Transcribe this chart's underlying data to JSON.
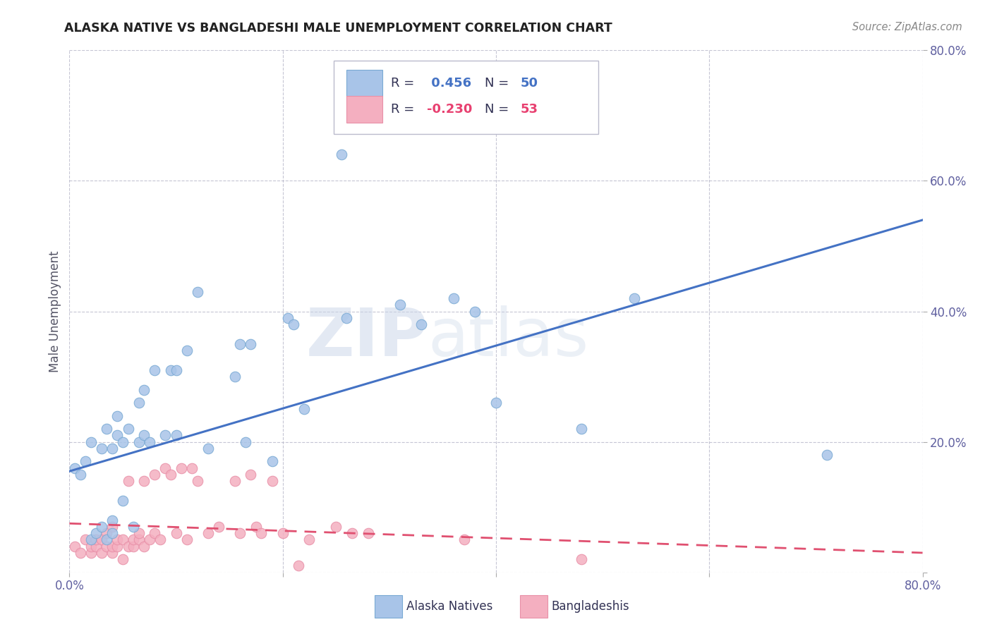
{
  "title": "ALASKA NATIVE VS BANGLADESHI MALE UNEMPLOYMENT CORRELATION CHART",
  "source": "Source: ZipAtlas.com",
  "ylabel": "Male Unemployment",
  "xlim": [
    0.0,
    0.8
  ],
  "ylim": [
    0.0,
    0.8
  ],
  "xticks": [
    0.0,
    0.2,
    0.4,
    0.6,
    0.8
  ],
  "yticks": [
    0.0,
    0.2,
    0.4,
    0.6,
    0.8
  ],
  "xticklabels": [
    "0.0%",
    "",
    "",
    "",
    "80.0%"
  ],
  "yticklabels": [
    "",
    "20.0%",
    "40.0%",
    "60.0%",
    "80.0%"
  ],
  "alaska_color": "#a8c4e8",
  "alaska_edge": "#7aaad4",
  "bangladeshi_color": "#f4afc0",
  "bangladeshi_edge": "#e890a8",
  "alaska_R": 0.456,
  "alaska_N": 50,
  "bangladeshi_R": -0.23,
  "bangladeshi_N": 53,
  "alaska_line_color": "#4472c4",
  "bangladeshi_line_color": "#e05070",
  "watermark_1": "ZIP",
  "watermark_2": "atlas",
  "legend_labels": [
    "Alaska Natives",
    "Bangladeshis"
  ],
  "alaska_line_x0": 0.0,
  "alaska_line_y0": 0.155,
  "alaska_line_x1": 0.8,
  "alaska_line_y1": 0.54,
  "bangladeshi_line_x0": 0.0,
  "bangladeshi_line_y0": 0.075,
  "bangladeshi_line_x1": 0.8,
  "bangladeshi_line_y1": 0.03,
  "alaska_scatter_x": [
    0.005,
    0.01,
    0.015,
    0.02,
    0.02,
    0.025,
    0.03,
    0.03,
    0.035,
    0.035,
    0.04,
    0.04,
    0.04,
    0.045,
    0.045,
    0.05,
    0.05,
    0.055,
    0.06,
    0.065,
    0.065,
    0.07,
    0.07,
    0.075,
    0.08,
    0.09,
    0.095,
    0.1,
    0.1,
    0.11,
    0.12,
    0.13,
    0.155,
    0.16,
    0.165,
    0.17,
    0.19,
    0.205,
    0.21,
    0.22,
    0.255,
    0.26,
    0.31,
    0.33,
    0.36,
    0.38,
    0.4,
    0.48,
    0.53,
    0.71
  ],
  "alaska_scatter_y": [
    0.16,
    0.15,
    0.17,
    0.05,
    0.2,
    0.06,
    0.07,
    0.19,
    0.05,
    0.22,
    0.06,
    0.08,
    0.19,
    0.21,
    0.24,
    0.11,
    0.2,
    0.22,
    0.07,
    0.2,
    0.26,
    0.21,
    0.28,
    0.2,
    0.31,
    0.21,
    0.31,
    0.21,
    0.31,
    0.34,
    0.43,
    0.19,
    0.3,
    0.35,
    0.2,
    0.35,
    0.17,
    0.39,
    0.38,
    0.25,
    0.64,
    0.39,
    0.41,
    0.38,
    0.42,
    0.4,
    0.26,
    0.22,
    0.42,
    0.18
  ],
  "bangladeshi_scatter_x": [
    0.005,
    0.01,
    0.015,
    0.02,
    0.02,
    0.025,
    0.025,
    0.03,
    0.03,
    0.035,
    0.035,
    0.04,
    0.04,
    0.04,
    0.045,
    0.045,
    0.05,
    0.05,
    0.055,
    0.055,
    0.06,
    0.06,
    0.065,
    0.065,
    0.07,
    0.07,
    0.075,
    0.08,
    0.08,
    0.085,
    0.09,
    0.095,
    0.1,
    0.105,
    0.11,
    0.115,
    0.12,
    0.13,
    0.14,
    0.155,
    0.16,
    0.17,
    0.175,
    0.18,
    0.19,
    0.2,
    0.215,
    0.225,
    0.25,
    0.265,
    0.28,
    0.37,
    0.48
  ],
  "bangladeshi_scatter_y": [
    0.04,
    0.03,
    0.05,
    0.03,
    0.04,
    0.04,
    0.05,
    0.03,
    0.05,
    0.04,
    0.06,
    0.03,
    0.04,
    0.07,
    0.04,
    0.05,
    0.02,
    0.05,
    0.04,
    0.14,
    0.04,
    0.05,
    0.05,
    0.06,
    0.04,
    0.14,
    0.05,
    0.06,
    0.15,
    0.05,
    0.16,
    0.15,
    0.06,
    0.16,
    0.05,
    0.16,
    0.14,
    0.06,
    0.07,
    0.14,
    0.06,
    0.15,
    0.07,
    0.06,
    0.14,
    0.06,
    0.01,
    0.05,
    0.07,
    0.06,
    0.06,
    0.05,
    0.02
  ]
}
